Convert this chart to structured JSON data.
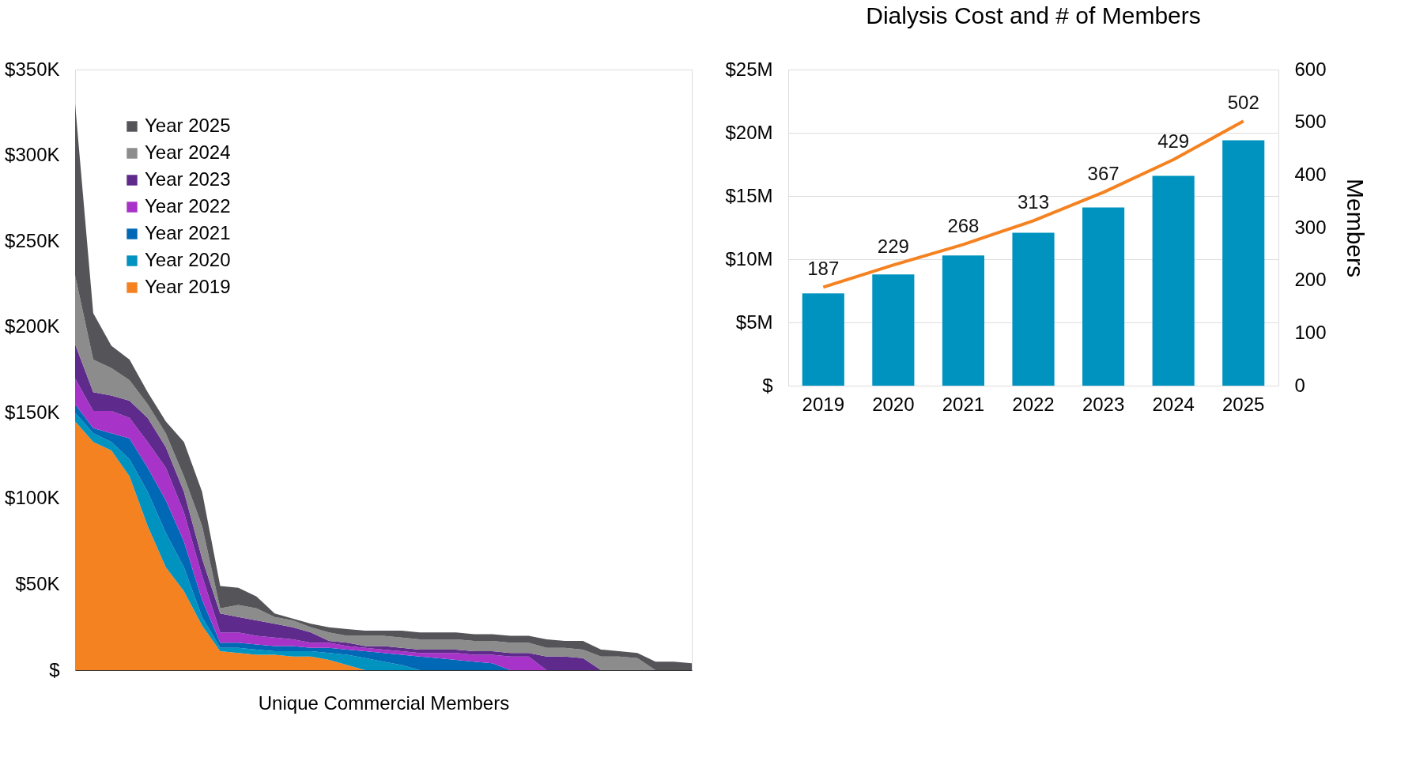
{
  "chart_data": [
    {
      "type": "area",
      "stacked": true,
      "xlabel": "Unique Commercial Members",
      "categories": [
        null,
        null,
        null,
        null,
        null,
        null,
        null,
        null,
        null,
        null,
        null,
        null,
        null,
        null,
        null,
        null,
        null,
        null,
        null,
        null,
        null,
        null,
        null,
        null,
        null,
        null,
        null,
        null,
        null,
        null,
        null,
        null,
        null,
        null,
        null
      ],
      "series": [
        {
          "name": "Year 2019",
          "color": "#f58220",
          "values": [
            145,
            133,
            128,
            113,
            84,
            60,
            46,
            26,
            11,
            10,
            9,
            9,
            8,
            8,
            6,
            3,
            0,
            0,
            0,
            0,
            0,
            0,
            0,
            0,
            0,
            0,
            0,
            0,
            0,
            0,
            0,
            0,
            0,
            0,
            0
          ]
        },
        {
          "name": "Year 2020",
          "color": "#0093c0",
          "values": [
            5,
            5,
            5,
            10,
            20,
            20,
            14,
            5,
            2,
            3,
            3,
            2,
            3,
            3,
            4,
            6,
            7,
            5,
            3,
            0,
            0,
            0,
            0,
            0,
            0,
            0,
            0,
            0,
            0,
            0,
            0,
            0,
            0,
            0,
            0
          ]
        },
        {
          "name": "Year 2021",
          "color": "#0068b4",
          "values": [
            5,
            3,
            5,
            12,
            14,
            19,
            15,
            10,
            3,
            3,
            3,
            3,
            3,
            2,
            3,
            3,
            4,
            5,
            6,
            8,
            7,
            6,
            5,
            4,
            0,
            0,
            0,
            0,
            0,
            0,
            0,
            0,
            0,
            0,
            0
          ]
        },
        {
          "name": "Year 2022",
          "color": "#a733c8",
          "values": [
            15,
            10,
            13,
            12,
            15,
            19,
            17,
            14,
            6,
            6,
            5,
            5,
            4,
            3,
            3,
            2,
            2,
            2,
            2,
            2,
            3,
            4,
            4,
            5,
            8,
            8,
            0,
            0,
            0,
            0,
            0,
            0,
            0,
            0,
            0
          ]
        },
        {
          "name": "Year 2023",
          "color": "#5e2a8c",
          "values": [
            20,
            11,
            9,
            10,
            14,
            12,
            12,
            10,
            11,
            9,
            9,
            8,
            7,
            6,
            1,
            2,
            1,
            2,
            2,
            2,
            2,
            2,
            2,
            2,
            2,
            2,
            8,
            8,
            7,
            0,
            0,
            0,
            0,
            0,
            0
          ]
        },
        {
          "name": "Year 2024",
          "color": "#8c8c8c",
          "values": [
            40,
            19,
            16,
            12,
            8,
            8,
            9,
            19,
            3,
            7,
            7,
            4,
            4,
            3,
            5,
            4,
            6,
            6,
            6,
            6,
            6,
            6,
            6,
            6,
            6,
            6,
            5,
            5,
            5,
            8,
            8,
            7,
            0,
            0,
            0
          ]
        },
        {
          "name": "Year 2025",
          "color": "#555559",
          "values": [
            100,
            27,
            13,
            12,
            7,
            7,
            20,
            20,
            13,
            10,
            7,
            2,
            1,
            2,
            3,
            4,
            3,
            3,
            4,
            4,
            4,
            4,
            4,
            4,
            4,
            4,
            5,
            4,
            5,
            4,
            3,
            3,
            5,
            5,
            4
          ]
        }
      ],
      "ylim": [
        0,
        350
      ],
      "yticks": [
        {
          "value": 0,
          "label": "$"
        },
        {
          "value": 50,
          "label": "$50K"
        },
        {
          "value": 100,
          "label": "$100K"
        },
        {
          "value": 150,
          "label": "$150K"
        },
        {
          "value": 200,
          "label": "$200K"
        },
        {
          "value": 250,
          "label": "$250K"
        },
        {
          "value": 300,
          "label": "$300K"
        },
        {
          "value": 350,
          "label": "$350K"
        }
      ],
      "legend": "top left",
      "grid": false,
      "tick_labels": "y"
    },
    {
      "type": "bar",
      "title": "Dialysis Cost and # of Members",
      "y2label": "Members",
      "categories": [
        "2019",
        "2020",
        "2021",
        "2022",
        "2023",
        "2024",
        "2025"
      ],
      "series": [
        {
          "type": "bar",
          "color": "#0093c0",
          "values": [
            7.3,
            8.8,
            10.3,
            12.1,
            14.1,
            16.6,
            19.4
          ]
        },
        {
          "type": "line",
          "axis": "y2",
          "color": "#f58220",
          "values": [
            187,
            229,
            268,
            313,
            367,
            429,
            502
          ],
          "value_labels": [
            "187",
            "229",
            "268",
            "313",
            "367",
            "429",
            "502"
          ]
        }
      ],
      "ylim": [
        0,
        25
      ],
      "yticks": [
        {
          "value": 0,
          "label": "$"
        },
        {
          "value": 5,
          "label": "$5M"
        },
        {
          "value": 10,
          "label": "$10M"
        },
        {
          "value": 15,
          "label": "$15M"
        },
        {
          "value": 20,
          "label": "$20M"
        },
        {
          "value": 25,
          "label": "$25M"
        }
      ],
      "y2lim": [
        0,
        600
      ],
      "y2ticks": [
        0,
        100,
        200,
        300,
        400,
        500,
        600
      ],
      "grid": "y",
      "marker": "none"
    }
  ]
}
